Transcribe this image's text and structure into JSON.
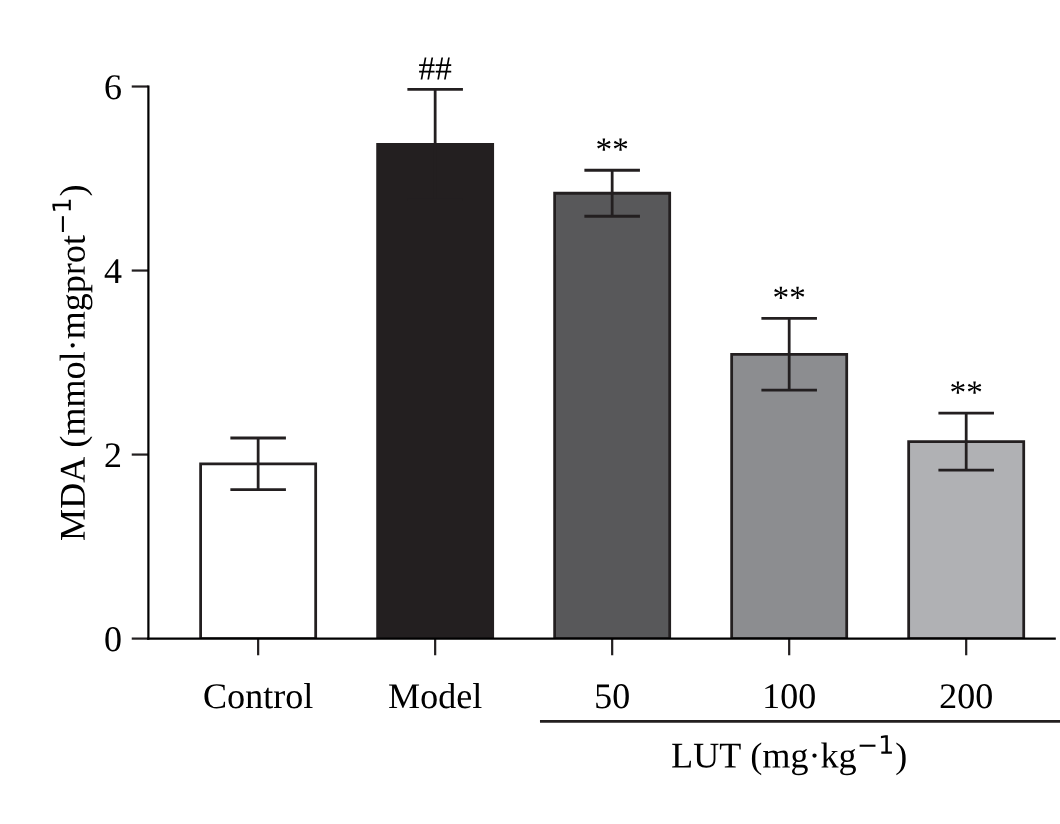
{
  "chart_data": {
    "type": "bar",
    "ylabel": "MDA (mmol·mgprot$^{−1}$)",
    "categories": [
      "Control",
      "Model",
      "50",
      "100",
      "200"
    ],
    "values": [
      1.9,
      5.37,
      4.84,
      3.09,
      2.14
    ],
    "errors": [
      0.28,
      0.6,
      0.25,
      0.39,
      0.31
    ],
    "colors": [
      "#ffffff",
      "#231f20",
      "#58585a",
      "#8c8d90",
      "#b0b1b4"
    ],
    "ylim": [
      0,
      6
    ],
    "yticks": [
      0,
      2,
      4,
      6
    ],
    "grid": false,
    "annotations": [
      {
        "text": "##",
        "x": "Model",
        "y": 5.97
      },
      {
        "text": "**",
        "x": "50",
        "y": 5.09
      },
      {
        "text": "**",
        "x": "100",
        "y": 3.48
      },
      {
        "text": "**",
        "x": "200",
        "y": 2.45
      },
      "LUT (mg·kg$^{−1}$)"
    ]
  }
}
